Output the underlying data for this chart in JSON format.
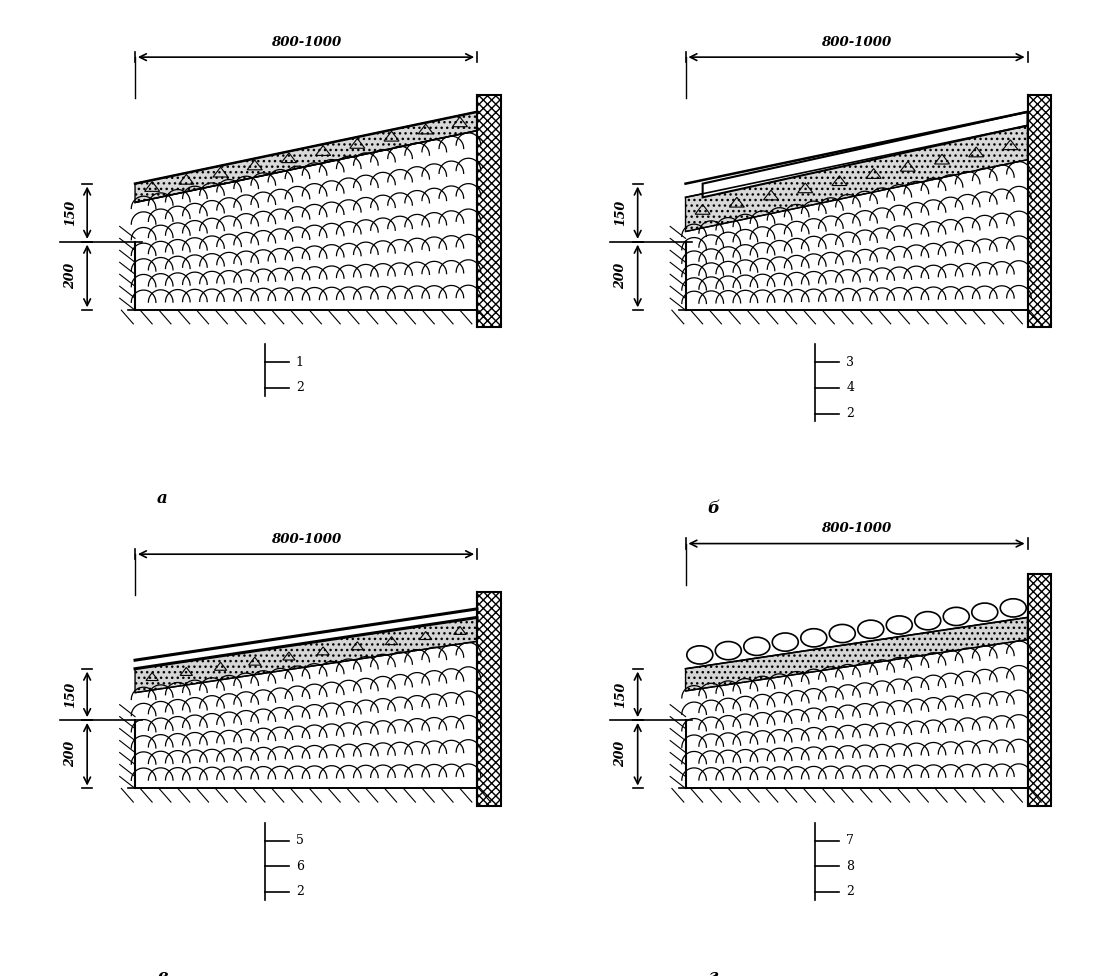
{
  "dim_width": "800-1000",
  "dim_150": "150",
  "dim_200": "200",
  "bg_color": "#ffffff",
  "panels_labels": [
    "а",
    "б",
    "в",
    "г"
  ],
  "legend_a": [
    "1",
    "2"
  ],
  "legend_b": [
    "3",
    "4",
    "2"
  ],
  "legend_v": [
    "5",
    "6",
    "2"
  ],
  "legend_g": [
    "7",
    "8",
    "2"
  ]
}
